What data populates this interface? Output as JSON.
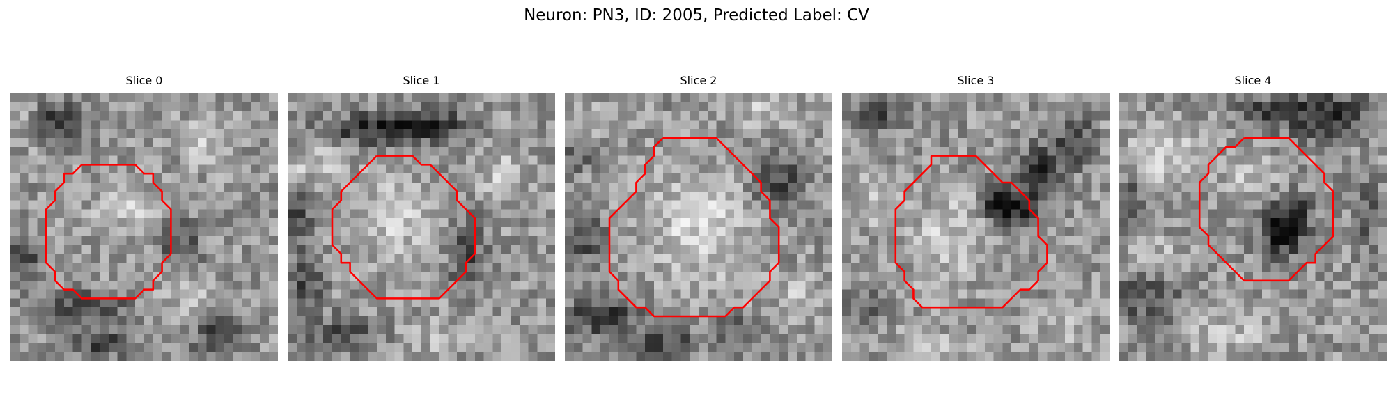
{
  "figure": {
    "title": "Neuron: PN3, ID: 2005, Predicted Label: CV"
  },
  "colors": {
    "contour": "#ff0000",
    "background": "#ffffff"
  },
  "slices": [
    {
      "label": "Slice 0",
      "contour": [
        [
          11,
          8
        ],
        [
          14,
          8
        ],
        [
          15,
          9
        ],
        [
          16,
          9
        ],
        [
          16,
          10
        ],
        [
          17,
          11
        ],
        [
          17,
          12
        ],
        [
          18,
          13
        ],
        [
          18,
          18
        ],
        [
          17,
          19
        ],
        [
          17,
          20
        ],
        [
          16,
          21
        ],
        [
          16,
          22
        ],
        [
          15,
          22
        ],
        [
          14,
          23
        ],
        [
          12,
          23
        ],
        [
          10,
          23
        ],
        [
          9,
          23
        ],
        [
          8,
          23
        ],
        [
          7,
          22
        ],
        [
          6,
          22
        ],
        [
          5,
          21
        ],
        [
          5,
          20
        ],
        [
          4,
          19
        ],
        [
          4,
          18
        ],
        [
          4,
          17
        ],
        [
          4,
          13
        ],
        [
          5,
          12
        ],
        [
          5,
          11
        ],
        [
          6,
          10
        ],
        [
          6,
          9
        ],
        [
          7,
          9
        ],
        [
          8,
          8
        ],
        [
          11,
          8
        ]
      ],
      "texture": {
        "seed": 11,
        "dark": [
          [
            5.5,
            3.5,
            3,
            2,
            110
          ],
          [
            1.5,
            18.5,
            2.2,
            2.2,
            90
          ],
          [
            8,
            24,
            5,
            1.8,
            85
          ],
          [
            10,
            28,
            4,
            1.5,
            80
          ],
          [
            19,
            17,
            2.5,
            3,
            70
          ],
          [
            23,
            27,
            3,
            2.5,
            70
          ]
        ],
        "light": [
          [
            13,
            13,
            4,
            3,
            45
          ],
          [
            22,
            5,
            3,
            3,
            40
          ],
          [
            20,
            23,
            3,
            3,
            40
          ],
          [
            2,
            4,
            2.5,
            2,
            35
          ]
        ]
      }
    },
    {
      "label": "Slice 1",
      "contour": [
        [
          10,
          7
        ],
        [
          14,
          7
        ],
        [
          15,
          8
        ],
        [
          16,
          8
        ],
        [
          17,
          9
        ],
        [
          18,
          10
        ],
        [
          19,
          11
        ],
        [
          19,
          12
        ],
        [
          20,
          13
        ],
        [
          21,
          14
        ],
        [
          21,
          17
        ],
        [
          21,
          18
        ],
        [
          20,
          19
        ],
        [
          20,
          20
        ],
        [
          19,
          21
        ],
        [
          18,
          22
        ],
        [
          17,
          23
        ],
        [
          14,
          23
        ],
        [
          11,
          23
        ],
        [
          10,
          23
        ],
        [
          9,
          22
        ],
        [
          8,
          21
        ],
        [
          7,
          20
        ],
        [
          7,
          19
        ],
        [
          6,
          19
        ],
        [
          6,
          18
        ],
        [
          5,
          17
        ],
        [
          5,
          13
        ],
        [
          6,
          12
        ],
        [
          6,
          11
        ],
        [
          7,
          10
        ],
        [
          8,
          9
        ],
        [
          9,
          8
        ],
        [
          10,
          7
        ]
      ],
      "texture": {
        "seed": 23,
        "dark": [
          [
            10,
            4,
            6,
            1.6,
            110
          ],
          [
            16,
            3.5,
            4,
            1.8,
            100
          ],
          [
            2,
            21,
            2,
            3,
            80
          ],
          [
            20,
            18,
            2,
            4,
            80
          ],
          [
            6,
            27,
            4,
            2,
            70
          ],
          [
            1,
            14,
            2,
            3,
            70
          ]
        ],
        "light": [
          [
            12,
            14,
            5,
            5,
            50
          ],
          [
            3,
            8,
            3,
            2,
            45
          ],
          [
            24,
            9,
            3,
            3,
            40
          ],
          [
            17,
            27,
            4,
            2,
            35
          ]
        ]
      }
    },
    {
      "label": "Slice 2",
      "contour": [
        [
          11,
          5
        ],
        [
          16,
          5
        ],
        [
          17,
          5
        ],
        [
          18,
          6
        ],
        [
          19,
          7
        ],
        [
          20,
          8
        ],
        [
          21,
          9
        ],
        [
          22,
          10
        ],
        [
          22,
          11
        ],
        [
          23,
          12
        ],
        [
          23,
          14
        ],
        [
          24,
          15
        ],
        [
          24,
          19
        ],
        [
          23,
          20
        ],
        [
          23,
          21
        ],
        [
          22,
          22
        ],
        [
          21,
          23
        ],
        [
          20,
          24
        ],
        [
          19,
          24
        ],
        [
          18,
          25
        ],
        [
          17,
          25
        ],
        [
          12,
          25
        ],
        [
          11,
          25
        ],
        [
          10,
          25
        ],
        [
          9,
          24
        ],
        [
          8,
          24
        ],
        [
          7,
          23
        ],
        [
          6,
          22
        ],
        [
          6,
          21
        ],
        [
          5,
          20
        ],
        [
          5,
          19
        ],
        [
          5,
          14
        ],
        [
          6,
          13
        ],
        [
          7,
          12
        ],
        [
          8,
          11
        ],
        [
          8,
          10
        ],
        [
          9,
          9
        ],
        [
          9,
          8
        ],
        [
          10,
          7
        ],
        [
          10,
          6
        ],
        [
          11,
          5
        ]
      ],
      "texture": {
        "seed": 37,
        "dark": [
          [
            4,
            25,
            4,
            2,
            100
          ],
          [
            2,
            16,
            2.5,
            3,
            80
          ],
          [
            24,
            10,
            3,
            3,
            80
          ],
          [
            11,
            28,
            4,
            1.6,
            85
          ],
          [
            20,
            27,
            3,
            2,
            70
          ],
          [
            1,
            7,
            2,
            2,
            60
          ]
        ],
        "light": [
          [
            15,
            15,
            6,
            6,
            60
          ],
          [
            3,
            3,
            3,
            2,
            45
          ],
          [
            26,
            23,
            2.5,
            2.5,
            40
          ],
          [
            22,
            2,
            3,
            2,
            40
          ]
        ]
      }
    },
    {
      "label": "Slice 3",
      "contour": [
        [
          10,
          7
        ],
        [
          15,
          7
        ],
        [
          16,
          8
        ],
        [
          17,
          9
        ],
        [
          18,
          10
        ],
        [
          19,
          10
        ],
        [
          20,
          11
        ],
        [
          21,
          12
        ],
        [
          21,
          13
        ],
        [
          22,
          14
        ],
        [
          22,
          16
        ],
        [
          23,
          17
        ],
        [
          23,
          19
        ],
        [
          22,
          20
        ],
        [
          22,
          21
        ],
        [
          21,
          22
        ],
        [
          20,
          22
        ],
        [
          19,
          23
        ],
        [
          18,
          24
        ],
        [
          13,
          24
        ],
        [
          10,
          24
        ],
        [
          9,
          24
        ],
        [
          8,
          23
        ],
        [
          8,
          22
        ],
        [
          7,
          21
        ],
        [
          7,
          20
        ],
        [
          6,
          19
        ],
        [
          6,
          15
        ],
        [
          6,
          13
        ],
        [
          7,
          12
        ],
        [
          7,
          11
        ],
        [
          8,
          10
        ],
        [
          9,
          9
        ],
        [
          10,
          8
        ],
        [
          10,
          7
        ]
      ],
      "texture": {
        "seed": 51,
        "dark": [
          [
            19.5,
            13,
            2.5,
            2,
            120
          ],
          [
            22,
            9,
            2.5,
            3,
            100
          ],
          [
            17,
            12,
            1.5,
            2.5,
            90
          ],
          [
            4,
            2,
            3,
            2,
            70
          ],
          [
            26,
            5,
            2,
            3,
            90
          ],
          [
            2,
            24,
            3,
            2,
            55
          ]
        ],
        "light": [
          [
            12,
            16,
            5,
            5,
            45
          ],
          [
            3,
            12,
            3,
            3,
            35
          ],
          [
            25,
            26,
            3,
            2,
            40
          ],
          [
            10,
            28,
            4,
            1.5,
            35
          ]
        ]
      }
    },
    {
      "label": "Slice 4",
      "contour": [
        [
          14,
          5
        ],
        [
          18,
          5
        ],
        [
          19,
          5
        ],
        [
          20,
          6
        ],
        [
          21,
          7
        ],
        [
          22,
          8
        ],
        [
          23,
          9
        ],
        [
          23,
          10
        ],
        [
          24,
          11
        ],
        [
          24,
          16
        ],
        [
          23,
          17
        ],
        [
          22,
          18
        ],
        [
          22,
          19
        ],
        [
          21,
          19
        ],
        [
          20,
          20
        ],
        [
          19,
          21
        ],
        [
          15,
          21
        ],
        [
          14,
          21
        ],
        [
          13,
          20
        ],
        [
          12,
          19
        ],
        [
          11,
          18
        ],
        [
          10,
          17
        ],
        [
          10,
          16
        ],
        [
          9,
          15
        ],
        [
          9,
          10
        ],
        [
          10,
          9
        ],
        [
          10,
          8
        ],
        [
          11,
          7
        ],
        [
          12,
          6
        ],
        [
          13,
          6
        ],
        [
          14,
          5
        ]
      ],
      "texture": {
        "seed": 67,
        "dark": [
          [
            18,
            15.5,
            2.2,
            3,
            120
          ],
          [
            20,
            14,
            1.5,
            2.5,
            90
          ],
          [
            23,
            2.5,
            5,
            2.5,
            110
          ],
          [
            16,
            2,
            3,
            1.5,
            70
          ],
          [
            3,
            23,
            4,
            3,
            70
          ],
          [
            1,
            12,
            2,
            3,
            60
          ],
          [
            28,
            14,
            1.5,
            4,
            60
          ]
        ],
        "light": [
          [
            5,
            7,
            4,
            3,
            55
          ],
          [
            15,
            9,
            3,
            2,
            45
          ],
          [
            4,
            18,
            3,
            2,
            35
          ],
          [
            12,
            27,
            5,
            2,
            40
          ]
        ]
      }
    }
  ]
}
